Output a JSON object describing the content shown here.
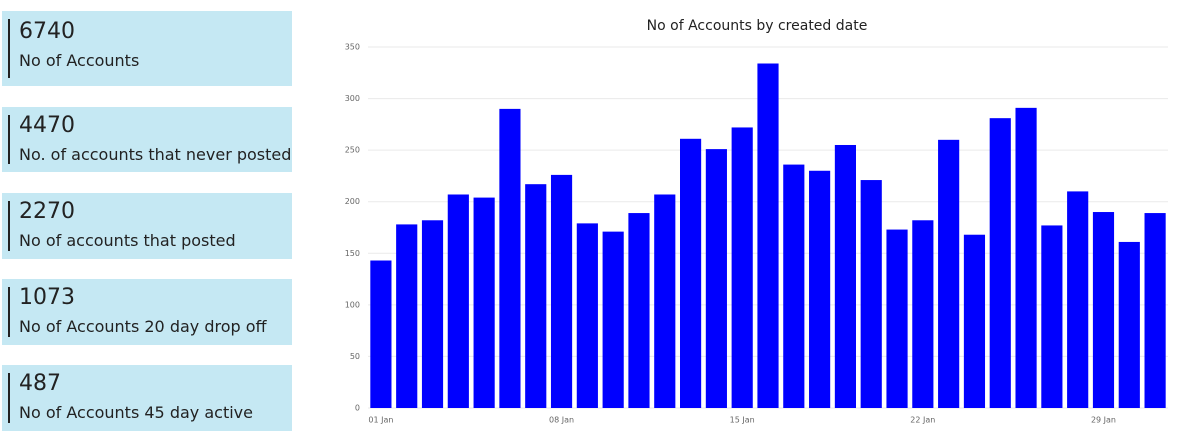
{
  "cards": [
    {
      "value": 6740,
      "label": "No of Accounts"
    },
    {
      "value": 4470,
      "label": "No. of accounts that never posted"
    },
    {
      "value": 2270,
      "label": "No of accounts that posted"
    },
    {
      "value": 1073,
      "label": "No of Accounts 20 day drop off"
    },
    {
      "value": 487,
      "label": "No of Accounts 45 day active"
    }
  ],
  "chart_data": {
    "type": "bar",
    "title": "No of Accounts by created date",
    "categories": [
      "01 Jan",
      null,
      null,
      null,
      null,
      null,
      null,
      "08 Jan",
      null,
      null,
      null,
      null,
      null,
      null,
      "15 Jan",
      null,
      null,
      null,
      null,
      null,
      null,
      "22 Jan",
      null,
      null,
      null,
      null,
      null,
      null,
      "29 Jan",
      null,
      null
    ],
    "values": [
      143,
      178,
      182,
      207,
      204,
      290,
      217,
      226,
      179,
      171,
      189,
      207,
      261,
      251,
      272,
      334,
      236,
      230,
      255,
      221,
      173,
      182,
      260,
      168,
      281,
      291,
      177,
      210,
      190,
      161,
      189
    ],
    "color": "#0000ff",
    "ylim": [
      0,
      350
    ],
    "yticks": [
      0,
      50,
      100,
      150,
      200,
      250,
      300,
      350
    ],
    "grid": true
  }
}
